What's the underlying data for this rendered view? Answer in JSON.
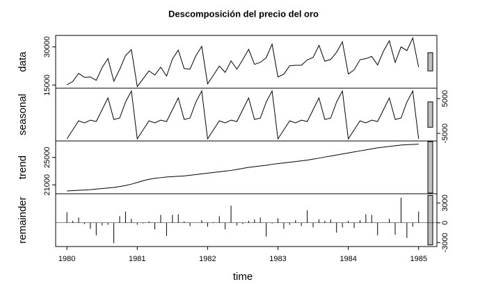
{
  "chart_data": {
    "type": "decomposition",
    "title": "Descomposición del precio del oro",
    "xlabel": "time",
    "xlim": [
      1979.84,
      1985.26
    ],
    "xticks": [
      1980,
      1981,
      1982,
      1983,
      1984,
      1985
    ],
    "x": [
      1980,
      1980.0833,
      1980.1667,
      1980.25,
      1980.3333,
      1980.4167,
      1980.5,
      1980.5833,
      1980.6667,
      1980.75,
      1980.8333,
      1980.9167,
      1981,
      1981.0833,
      1981.1667,
      1981.25,
      1981.3333,
      1981.4167,
      1981.5,
      1981.5833,
      1981.6667,
      1981.75,
      1981.8333,
      1981.9167,
      1982,
      1982.0833,
      1982.1667,
      1982.25,
      1982.3333,
      1982.4167,
      1982.5,
      1982.5833,
      1982.6667,
      1982.75,
      1982.8333,
      1982.9167,
      1983,
      1983.0833,
      1983.1667,
      1983.25,
      1983.3333,
      1983.4167,
      1983.5,
      1983.5833,
      1983.6667,
      1983.75,
      1983.8333,
      1983.9167,
      1984,
      1984.0833,
      1984.1667,
      1984.25,
      1984.3333,
      1984.4167,
      1984.5,
      1984.5833,
      1984.6667,
      1984.75,
      1984.8333,
      1984.9167,
      1985
    ],
    "panels": [
      {
        "name": "data",
        "style": "line",
        "side": "left",
        "ylim": [
          13800,
          34500
        ],
        "yticks": [
          15000,
          30000
        ],
        "values": [
          15100,
          16450,
          19600,
          18050,
          18200,
          16880,
          21860,
          25440,
          16520,
          21150,
          26600,
          28900,
          14450,
          17500,
          20600,
          18950,
          22050,
          18550,
          25200,
          28750,
          21500,
          21300,
          26500,
          30200,
          15500,
          18900,
          22500,
          20000,
          24500,
          21250,
          25000,
          29050,
          23150,
          23950,
          25750,
          31100,
          18200,
          19300,
          22600,
          22800,
          22800,
          24900,
          25850,
          30600,
          24350,
          25100,
          27850,
          32000,
          19350,
          21000,
          24950,
          25400,
          26250,
          22900,
          28300,
          32400,
          23900,
          30000,
          28550,
          33500,
          22050
        ]
      },
      {
        "name": "seasonal",
        "style": "line",
        "side": "right",
        "ylim": [
          -7200,
          8000
        ],
        "yticks": [
          -5000,
          5000
        ],
        "values": [
          -6600,
          -4000,
          -1400,
          -2000,
          -1200,
          -1600,
          1800,
          5200,
          -1000,
          -600,
          4000,
          7200,
          -6600,
          -4000,
          -1400,
          -2000,
          -1200,
          -1600,
          1800,
          5200,
          -1000,
          -600,
          4000,
          7200,
          -6600,
          -4000,
          -1400,
          -2000,
          -1200,
          -1600,
          1800,
          5200,
          -1000,
          -600,
          4000,
          7200,
          -6600,
          -4000,
          -1400,
          -2000,
          -1200,
          -1600,
          1800,
          5200,
          -1000,
          -600,
          4000,
          7200,
          -6600,
          -4000,
          -1400,
          -2000,
          -1200,
          -1600,
          1800,
          5200,
          -1000,
          -600,
          4000,
          7200,
          -6600
        ]
      },
      {
        "name": "trend",
        "style": "line",
        "side": "left",
        "ylim": [
          19700,
          27400
        ],
        "yticks": [
          21000,
          25000
        ],
        "values": [
          20100,
          20150,
          20200,
          20250,
          20300,
          20380,
          20460,
          20540,
          20620,
          20750,
          20900,
          21100,
          21350,
          21600,
          21800,
          21950,
          22050,
          22150,
          22200,
          22250,
          22300,
          22400,
          22500,
          22600,
          22700,
          22800,
          22900,
          23000,
          23100,
          23250,
          23400,
          23550,
          23650,
          23750,
          23850,
          24000,
          24100,
          24200,
          24300,
          24400,
          24500,
          24600,
          24750,
          24900,
          25050,
          25200,
          25350,
          25500,
          25650,
          25800,
          25950,
          26100,
          26250,
          26400,
          26500,
          26600,
          26700,
          26800,
          26850,
          26900,
          26950
        ]
      },
      {
        "name": "remainder",
        "style": "bars",
        "side": "right",
        "ylim": [
          -3600,
          4400
        ],
        "yticks": [
          -3000,
          0,
          3000
        ],
        "values": [
          1600,
          300,
          800,
          -200,
          -900,
          -1900,
          -400,
          -300,
          -3100,
          1000,
          1700,
          600,
          -300,
          -100,
          200,
          -1000,
          1200,
          -2000,
          1200,
          1300,
          200,
          -500,
          0,
          400,
          -600,
          100,
          1000,
          -1000,
          2600,
          -400,
          -200,
          300,
          500,
          800,
          -2100,
          -100,
          700,
          -900,
          -300,
          400,
          -500,
          1900,
          -700,
          500,
          300,
          500,
          -1500,
          -700,
          300,
          -800,
          400,
          1300,
          1200,
          -1900,
          0,
          600,
          -1800,
          3800,
          -2300,
          -600,
          1700
        ]
      }
    ]
  }
}
